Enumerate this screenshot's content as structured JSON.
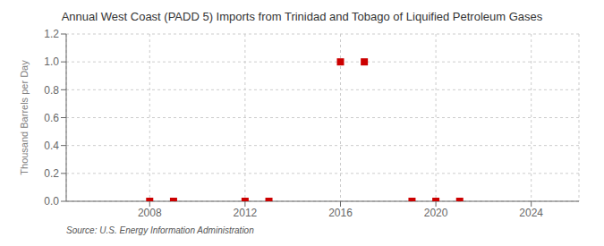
{
  "chart_data": {
    "type": "scatter",
    "title": "Annual West Coast (PADD 5) Imports from Trinidad and Tobago of Liquified Petroleum Gases",
    "y_label": "Thousand Barrels per Day",
    "annotations": [
      "Source: U.S. Energy Information Administration"
    ],
    "x": [
      2008,
      2009,
      2012,
      2013,
      2016,
      2017,
      2019,
      2020,
      2021
    ],
    "values": [
      0.0,
      0.0,
      0.0,
      0.0,
      1.0,
      1.0,
      0.0,
      0.0,
      0.0
    ],
    "color": "#cc0000",
    "marker": "square",
    "xlim": [
      2004.5,
      2026
    ],
    "xticks": [
      2008,
      2012,
      2016,
      2020,
      2024
    ],
    "ylim": [
      0.0,
      1.2
    ],
    "yticks": [
      {
        "value": 0.0,
        "label": "0.0"
      },
      0.2,
      0.4,
      0.6,
      0.8,
      {
        "value": 1.0,
        "label": "1.0"
      },
      1.2
    ],
    "grid": true
  }
}
